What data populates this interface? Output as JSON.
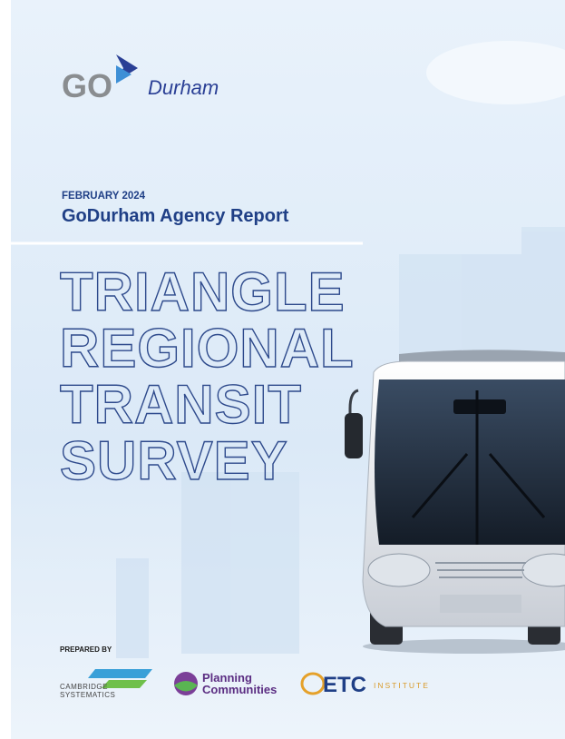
{
  "logo": {
    "mark": "GO",
    "name": "Durham"
  },
  "header": {
    "date": "FEBRUARY 2024",
    "report": "GoDurham Agency Report"
  },
  "title": {
    "lines": [
      "TRIANGLE",
      "REGIONAL",
      "TRANSIT",
      "SURVEY"
    ]
  },
  "prepared_by": {
    "label": "PREPARED BY",
    "firms": [
      {
        "lines": [
          "CAMBRIDGE",
          "SYSTEMATICS"
        ]
      },
      {
        "lines": [
          "Planning",
          "Communities"
        ]
      },
      {
        "lines": [
          "ETC",
          "INSTITUTE"
        ]
      }
    ]
  }
}
